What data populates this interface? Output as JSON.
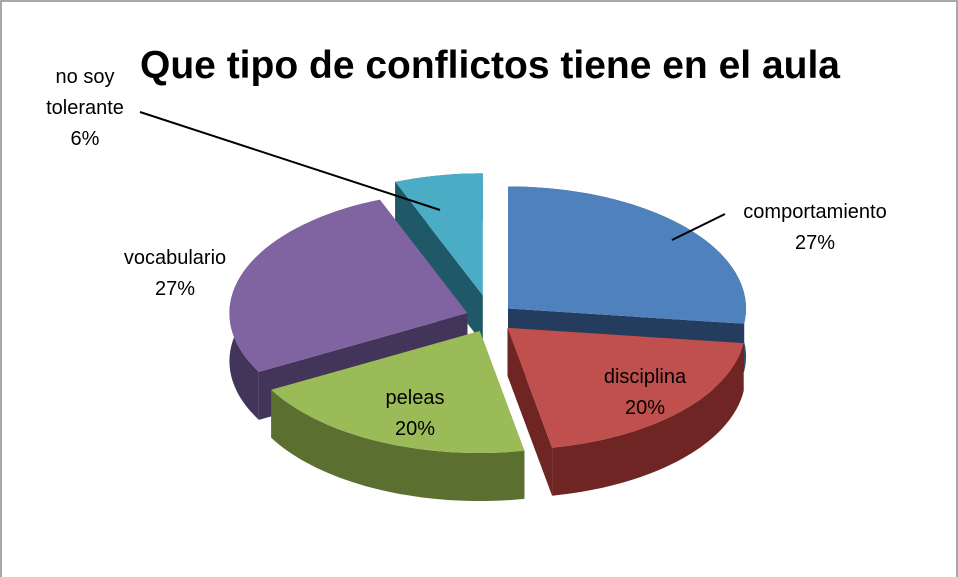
{
  "chart_data": {
    "type": "pie",
    "title": "Que tipo de conflictos tiene en el aula",
    "categories": [
      "comportamiento",
      "disciplina",
      "peleas",
      "vocabulario",
      "no soy tolerante"
    ],
    "values": [
      27,
      20,
      20,
      27,
      6
    ],
    "value_labels": [
      "27%",
      "20%",
      "20%",
      "27%",
      "6%"
    ],
    "colors": [
      "#4f81bd",
      "#c0504d",
      "#9bbb59",
      "#8064a2",
      "#4bacc6"
    ],
    "side_colors": [
      "#243c5e",
      "#6e2523",
      "#5b7030",
      "#43345a",
      "#1f5968"
    ]
  }
}
